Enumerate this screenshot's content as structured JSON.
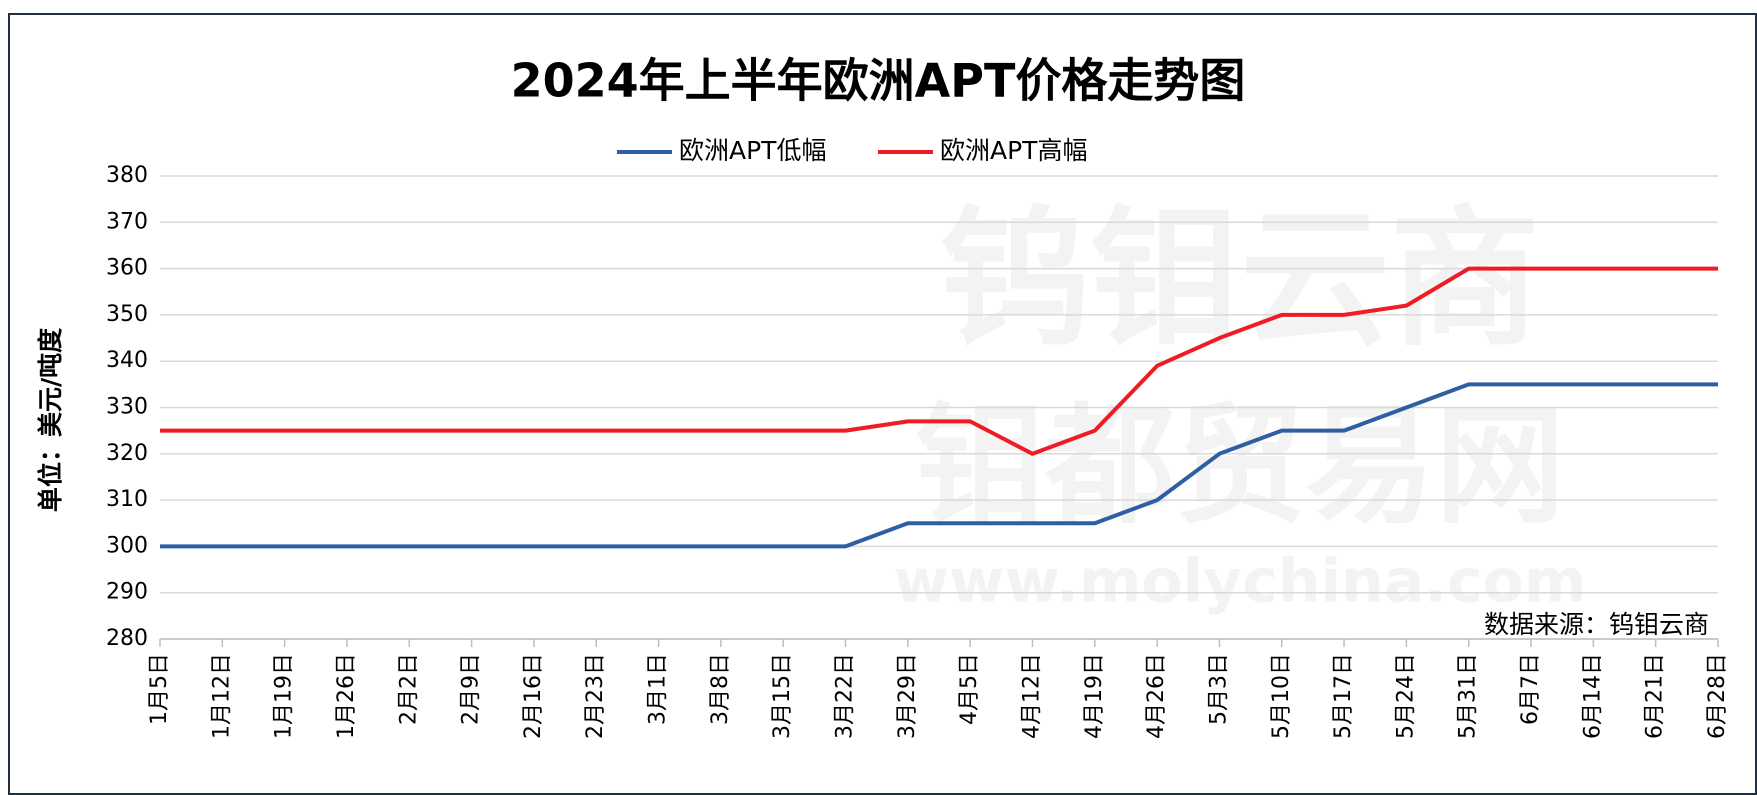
{
  "chart_data": {
    "type": "line",
    "title": "2024年上半年欧洲APT价格走势图",
    "y_label": "单位：美元/吨度",
    "source": "数据来源：钨钼云商",
    "watermark": [
      "钨钼云商",
      "钼都贸易网",
      "www.molychina.com"
    ],
    "categories": [
      "1月5日",
      "1月12日",
      "1月19日",
      "1月26日",
      "2月2日",
      "2月9日",
      "2月16日",
      "2月23日",
      "3月1日",
      "3月8日",
      "3月15日",
      "3月22日",
      "3月29日",
      "4月5日",
      "4月12日",
      "4月19日",
      "4月26日",
      "5月3日",
      "5月10日",
      "5月17日",
      "5月24日",
      "5月31日",
      "6月7日",
      "6月14日",
      "6月21日",
      "6月28日"
    ],
    "series": [
      {
        "name": "欧洲APT低幅",
        "color": "#2e5fa3",
        "values": [
          300,
          300,
          300,
          300,
          300,
          300,
          300,
          300,
          300,
          300,
          300,
          300,
          305,
          305,
          305,
          305,
          310,
          320,
          325,
          325,
          330,
          335,
          335,
          335,
          335,
          335
        ]
      },
      {
        "name": "欧洲APT高幅",
        "color": "#ee1c25",
        "values": [
          325,
          325,
          325,
          325,
          325,
          325,
          325,
          325,
          325,
          325,
          325,
          325,
          327,
          327,
          320,
          325,
          339,
          345,
          350,
          350,
          352,
          360,
          360,
          360,
          360,
          360
        ]
      }
    ],
    "ylim": [
      280,
      380
    ],
    "yticks": [
      280,
      290,
      300,
      310,
      320,
      330,
      340,
      350,
      360,
      370,
      380
    ],
    "grid": true,
    "legend": "top"
  }
}
